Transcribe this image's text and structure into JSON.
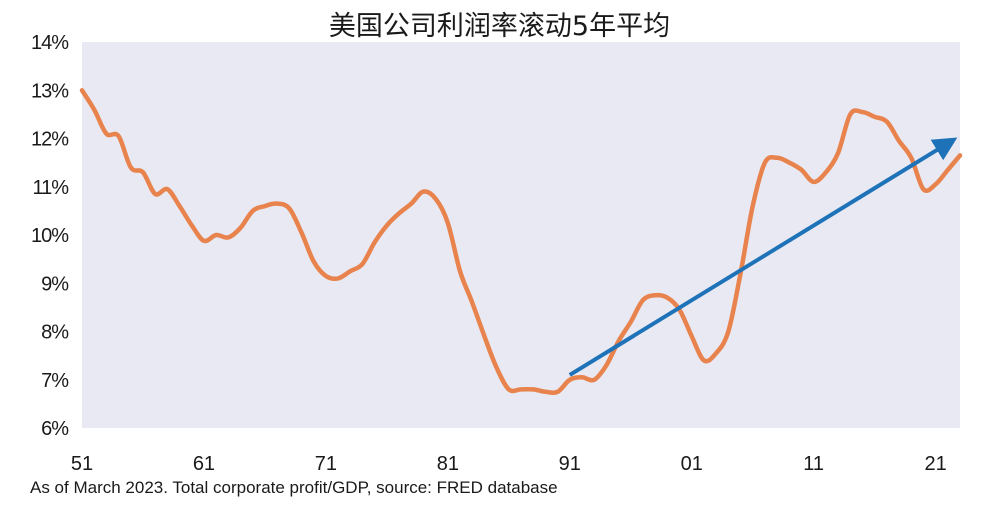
{
  "chart_data": {
    "type": "line",
    "title": "美国公司利润率滚动5年平均",
    "footnote": "As of March 2023. Total corporate profit/GDP, source: FRED database",
    "xlabel": "",
    "ylabel": "",
    "x_ticks": [
      "51",
      "61",
      "71",
      "81",
      "91",
      "01",
      "11",
      "21"
    ],
    "y_ticks": [
      "6%",
      "7%",
      "8%",
      "9%",
      "10%",
      "11%",
      "12%",
      "13%",
      "14%"
    ],
    "xlim": [
      1951,
      2023
    ],
    "ylim": [
      6,
      14
    ],
    "grid": false,
    "legend": "none",
    "colors": {
      "line": "#E8834E",
      "arrow": "#1D72B8",
      "plot_bg": "#E8E9F3",
      "text": "#1a1a1a"
    },
    "series": [
      {
        "x": [
          1951,
          1952,
          1953,
          1954,
          1955,
          1956,
          1957,
          1958,
          1959,
          1960,
          1961,
          1962,
          1963,
          1964,
          1965,
          1966,
          1967,
          1968,
          1969,
          1970,
          1971,
          1972,
          1973,
          1974,
          1975,
          1976,
          1977,
          1978,
          1979,
          1980,
          1981,
          1982,
          1983,
          1984,
          1985,
          1986,
          1987,
          1988,
          1989,
          1990,
          1991,
          1992,
          1993,
          1994,
          1995,
          1996,
          1997,
          1998,
          1999,
          2000,
          2001,
          2002,
          2003,
          2004,
          2005,
          2006,
          2007,
          2008,
          2009,
          2010,
          2011,
          2012,
          2013,
          2014,
          2015,
          2016,
          2017,
          2018,
          2019,
          2020,
          2021,
          2022,
          2023
        ],
        "y": [
          13.0,
          12.6,
          12.1,
          12.05,
          11.4,
          11.3,
          10.85,
          10.95,
          10.6,
          10.2,
          9.88,
          10.0,
          9.95,
          10.15,
          10.5,
          10.6,
          10.65,
          10.55,
          10.05,
          9.45,
          9.15,
          9.1,
          9.25,
          9.4,
          9.85,
          10.2,
          10.45,
          10.65,
          10.9,
          10.75,
          10.25,
          9.25,
          8.6,
          7.9,
          7.25,
          6.8,
          6.8,
          6.8,
          6.75,
          6.75,
          7.0,
          7.05,
          7.0,
          7.3,
          7.8,
          8.2,
          8.65,
          8.75,
          8.7,
          8.45,
          7.9,
          7.4,
          7.55,
          8.0,
          9.2,
          10.6,
          11.5,
          11.6,
          11.5,
          11.35,
          11.1,
          11.3,
          11.7,
          12.5,
          12.55,
          12.45,
          12.35,
          11.95,
          11.6,
          10.95,
          11.05,
          11.35,
          11.65
        ]
      }
    ],
    "annotation_arrow": {
      "from": [
        1991,
        7.1
      ],
      "to": [
        2022,
        11.9
      ]
    }
  }
}
